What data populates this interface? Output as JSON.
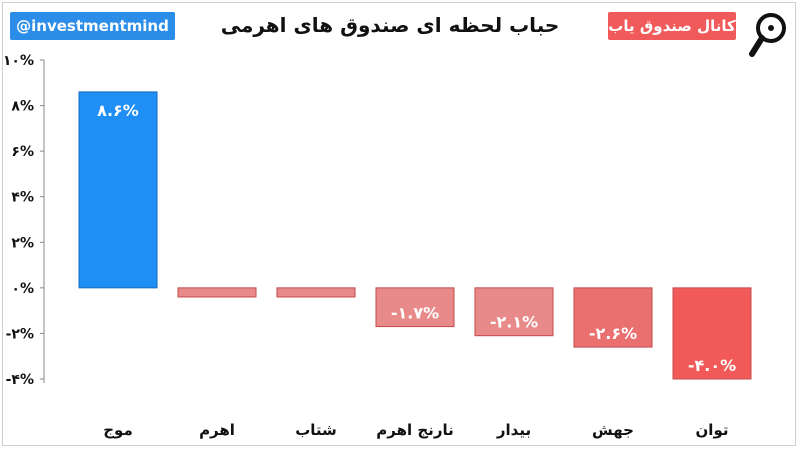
{
  "header": {
    "handle": "@investmentmind",
    "title": "حباب لحظه ای صندوق های اهرمی",
    "channel": "کانال صندوق یاب",
    "logo_icon": "search-magnifier-logo-icon"
  },
  "colors": {
    "positive": "#1f8ef5",
    "negative_light": "#e98a8a",
    "negative_mid": "#ea7070",
    "negative_dark": "#f25a5a",
    "handle_bg": "#2b8de8",
    "channel_bg": "#f05a5a"
  },
  "chart_data": {
    "type": "bar",
    "title": "حباب لحظه ای صندوق های اهرمی",
    "xlabel": "",
    "ylabel": "",
    "ylim": [
      -4,
      10
    ],
    "yticks": [
      -4,
      -2,
      0,
      2,
      4,
      6,
      8,
      10
    ],
    "ytick_labels": [
      "-۴%",
      "-۲%",
      "۰%",
      "۲%",
      "۴%",
      "۶%",
      "۸%",
      "۱۰%"
    ],
    "grid": false,
    "categories": [
      "موج",
      "اهرم",
      "شتاب",
      "نارنج اهرم",
      "بیدار",
      "جهش",
      "توان"
    ],
    "values": [
      8.6,
      -0.4,
      -0.4,
      -1.7,
      -2.1,
      -2.6,
      -4.0
    ],
    "data_labels": [
      "۸.۶%",
      "",
      "",
      "-۱.۷%",
      "-۲.۱%",
      "-۲.۶%",
      "-۴.۰%"
    ],
    "bar_colors": [
      "#1f8ef5",
      "#e98a8a",
      "#e98a8a",
      "#e98a8a",
      "#e98a8a",
      "#ea7070",
      "#f25a5a"
    ]
  }
}
